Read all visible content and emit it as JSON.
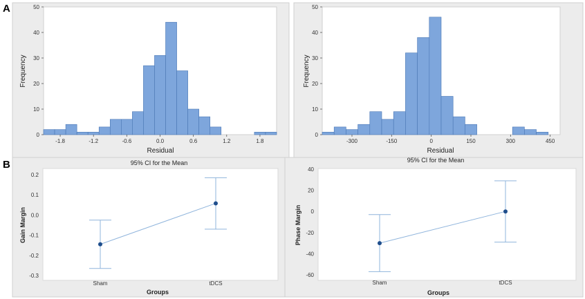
{
  "panel_labels": [
    "A",
    "B"
  ],
  "chart_data": [
    {
      "type": "histogram",
      "panel": "A-left",
      "title": "",
      "xlabel": "Residual",
      "ylabel": "Frequency",
      "xlim": [
        -2.1,
        2.1
      ],
      "ylim": [
        0,
        50
      ],
      "bin_edges": [
        -2.1,
        -1.9,
        -1.7,
        -1.5,
        -1.3,
        -1.1,
        -0.9,
        -0.7,
        -0.5,
        -0.3,
        -0.1,
        0.1,
        0.3,
        0.5,
        0.7,
        0.9,
        1.1,
        1.3,
        1.5,
        1.7,
        1.9,
        2.1
      ],
      "counts": [
        2,
        2,
        4,
        1,
        1,
        3,
        6,
        6,
        9,
        27,
        31,
        44,
        25,
        10,
        7,
        3,
        0,
        0,
        0,
        1,
        1
      ],
      "xticks": [
        -1.8,
        -1.2,
        -0.6,
        0.0,
        0.6,
        1.2,
        1.8
      ],
      "xtick_labels": [
        "-1.8",
        "-1.2",
        "-0.6",
        "0.0",
        "0.6",
        "1.2",
        "1.8"
      ],
      "yticks": [
        0,
        10,
        20,
        30,
        40,
        50
      ],
      "ytick_labels": [
        "0",
        "10",
        "20",
        "30",
        "40",
        "50"
      ]
    },
    {
      "type": "histogram",
      "panel": "A-right",
      "title": "",
      "xlabel": "Residual",
      "ylabel": "Frequency",
      "xlim": [
        -412.5,
        487.5
      ],
      "ylim": [
        0,
        50
      ],
      "bin_edges": [
        -412.5,
        -367.5,
        -322.5,
        -277.5,
        -232.5,
        -187.5,
        -142.5,
        -97.5,
        -52.5,
        -7.5,
        37.5,
        82.5,
        127.5,
        172.5,
        217.5,
        262.5,
        307.5,
        352.5,
        397.5,
        442.5,
        487.5
      ],
      "counts": [
        1,
        3,
        2,
        4,
        9,
        6,
        9,
        32,
        38,
        46,
        15,
        7,
        4,
        0,
        0,
        0,
        3,
        2,
        1,
        0
      ],
      "xticks": [
        -300,
        -150,
        0,
        150,
        300,
        450
      ],
      "xtick_labels": [
        "-300",
        "-150",
        "0",
        "150",
        "300",
        "450"
      ],
      "yticks": [
        0,
        10,
        20,
        30,
        40,
        50
      ],
      "ytick_labels": [
        "0",
        "10",
        "20",
        "30",
        "40",
        "50"
      ]
    },
    {
      "type": "interval",
      "panel": "B-left",
      "title": "95% CI for the Mean",
      "xlabel": "Groups",
      "ylabel": "Gain Margin",
      "categories": [
        "Sham",
        "tDCS"
      ],
      "means": [
        -0.145,
        0.058
      ],
      "ci_lower": [
        -0.265,
        -0.07
      ],
      "ci_upper": [
        -0.025,
        0.185
      ],
      "ylim": [
        -0.3,
        0.2
      ],
      "yticks": [
        -0.3,
        -0.2,
        -0.1,
        0.0,
        0.1,
        0.2
      ],
      "ytick_labels": [
        "-0.3",
        "-0.2",
        "-0.1",
        "0.0",
        "0.1",
        "0.2"
      ]
    },
    {
      "type": "interval",
      "panel": "B-right",
      "title": "95% CI for the Mean",
      "xlabel": "Groups",
      "ylabel": "Phase Margin",
      "categories": [
        "Sham",
        "tDCS"
      ],
      "means": [
        -30,
        0
      ],
      "ci_lower": [
        -57,
        -29
      ],
      "ci_upper": [
        -3,
        29
      ],
      "ylim": [
        -60,
        40
      ],
      "yticks": [
        -60,
        -40,
        -20,
        0,
        20,
        40
      ],
      "ytick_labels": [
        "-60",
        "-40",
        "-20",
        "0",
        "20",
        "40"
      ]
    }
  ],
  "colors": {
    "bar_fill": "#7ea6dc",
    "bar_stroke": "#4a77b4",
    "ci_line": "#8fb4dc",
    "mean_point": "#1f4e8c",
    "outer_bg": "#ececec",
    "plot_bg": "#ffffff"
  }
}
